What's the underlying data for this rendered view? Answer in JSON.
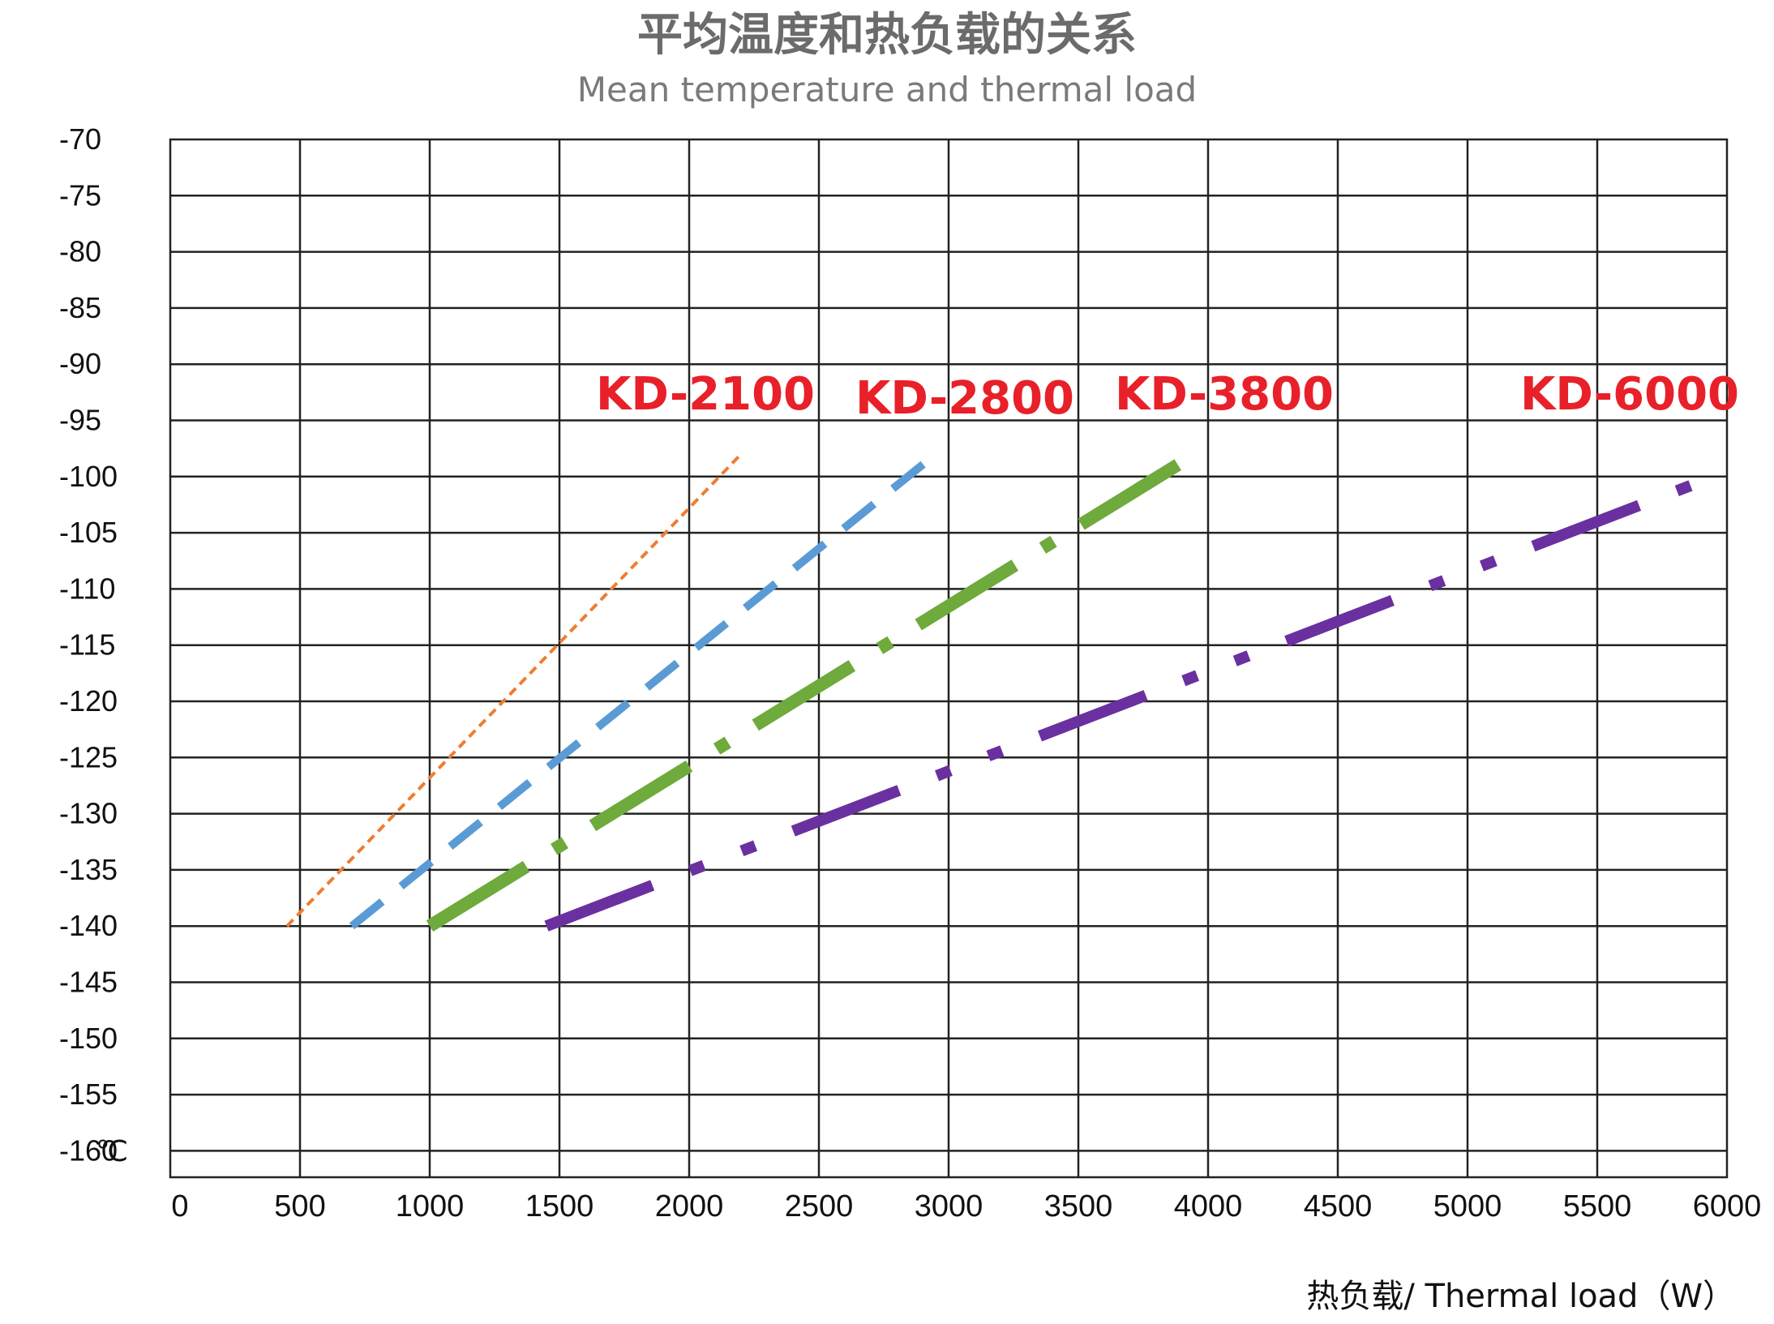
{
  "chart_data": {
    "type": "line",
    "title": "平均温度和热负载的关系",
    "subtitle": "Mean temperature and thermal load",
    "xlabel": "热负载/ Thermal load（W）",
    "ylabel": "℃",
    "xlim": [
      0,
      6000
    ],
    "ylim": [
      -160,
      -70
    ],
    "grid": true,
    "legend": "inline-labels",
    "x_ticks": [
      "0",
      "500",
      "1000",
      "1500",
      "2000",
      "2500",
      "3000",
      "3500",
      "4000",
      "4500",
      "5000",
      "5500",
      "6000"
    ],
    "y_ticks": [
      "-70",
      "-75",
      "-80",
      "-85",
      "-90",
      "-95",
      "-100",
      "-105",
      "-110",
      "-115",
      "-120",
      "-125",
      "-130",
      "-135",
      "-140",
      "-145",
      "-150",
      "-155",
      "-160"
    ],
    "label_color": "#e8202a",
    "series": [
      {
        "name": "KD-2100",
        "color": "#ee7d31",
        "style": "short-dash-thin",
        "points": [
          [
            450,
            -140
          ],
          [
            2200,
            -98
          ]
        ]
      },
      {
        "name": "KD-2800",
        "color": "#5b9bd5",
        "style": "long-dash",
        "points": [
          [
            700,
            -140
          ],
          [
            2950,
            -98
          ]
        ]
      },
      {
        "name": "KD-3800",
        "color": "#6eaa3c",
        "style": "dash-dot-thick",
        "points": [
          [
            1000,
            -140
          ],
          [
            3950,
            -98
          ]
        ]
      },
      {
        "name": "KD-6000",
        "color": "#6b30a0",
        "style": "dash-dot-dot-thick",
        "points": [
          [
            1450,
            -140
          ],
          [
            5950,
            -100
          ]
        ]
      }
    ]
  }
}
